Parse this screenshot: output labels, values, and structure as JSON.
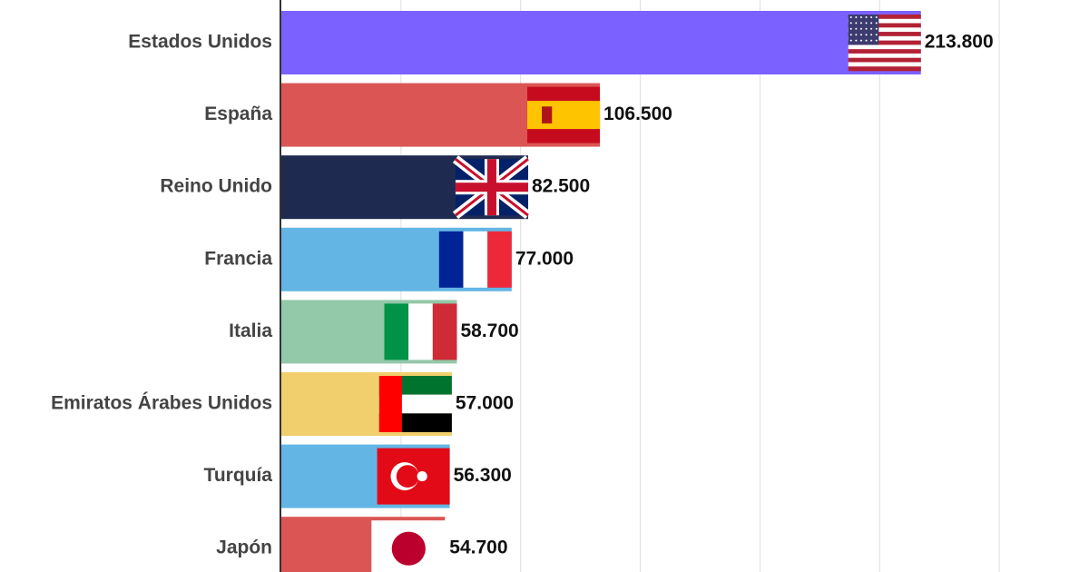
{
  "chart_data": {
    "type": "bar",
    "orientation": "horizontal",
    "categories": [
      "Estados Unidos",
      "España",
      "Reino Unido",
      "Francia",
      "Italia",
      "Emiratos Árabes Unidos",
      "Turquía",
      "Japón"
    ],
    "values": [
      213800,
      106500,
      82500,
      77000,
      58700,
      57000,
      56300,
      54700
    ],
    "value_labels": [
      "213.800",
      "106.500",
      "82.500",
      "77.000",
      "58.700",
      "57.000",
      "56.300",
      "54.700"
    ],
    "colors": [
      "#7b61ff",
      "#dc5555",
      "#1e2a4f",
      "#63b6e4",
      "#93c8a9",
      "#f1cf6d",
      "#63b6e4",
      "#dc5555"
    ],
    "xlim": [
      0,
      270000
    ],
    "gridlines": [
      40000,
      80000,
      120000,
      160000,
      200000,
      240000
    ],
    "grid": true
  }
}
